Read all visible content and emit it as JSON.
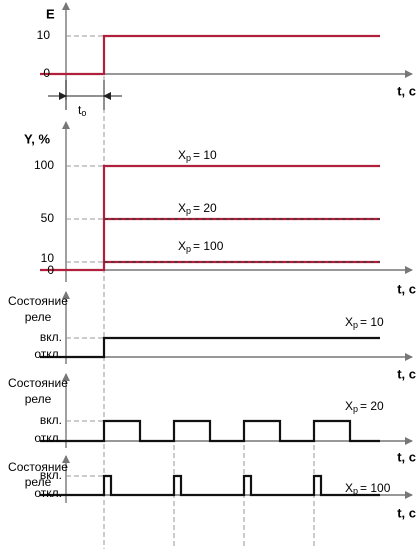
{
  "panel_input": {
    "axis_label": "E",
    "ticks": [
      "10",
      "0"
    ],
    "time_label": "t, c",
    "delay_label": {
      "symbol": "t",
      "subscript": "o"
    }
  },
  "panel_output": {
    "axis_label": "Y, %",
    "ticks": [
      "100",
      "50",
      "10",
      "0"
    ],
    "time_label": "t, c",
    "curves": [
      {
        "symbol": "X",
        "subscript": "p",
        "text": "= 10"
      },
      {
        "symbol": "X",
        "subscript": "p",
        "text": "= 20"
      },
      {
        "symbol": "X",
        "subscript": "p",
        "text": "= 100"
      }
    ]
  },
  "relay_panels": [
    {
      "axis_label": [
        "Состояние",
        "реле"
      ],
      "states": [
        "вкл.",
        "откл."
      ],
      "time_label": "t, c",
      "curve": {
        "symbol": "X",
        "subscript": "p",
        "text": "= 10"
      }
    },
    {
      "axis_label": [
        "Состояние",
        "реле"
      ],
      "states": [
        "вкл.",
        "откл."
      ],
      "time_label": "t, c",
      "curve": {
        "symbol": "X",
        "subscript": "p",
        "text": "= 20"
      }
    },
    {
      "axis_label": [
        "Состояние",
        "реле"
      ],
      "states": [
        "вкл.",
        "откл."
      ],
      "time_label": "t, c",
      "curve": {
        "symbol": "X",
        "subscript": "p",
        "text": "= 100"
      }
    }
  ]
}
